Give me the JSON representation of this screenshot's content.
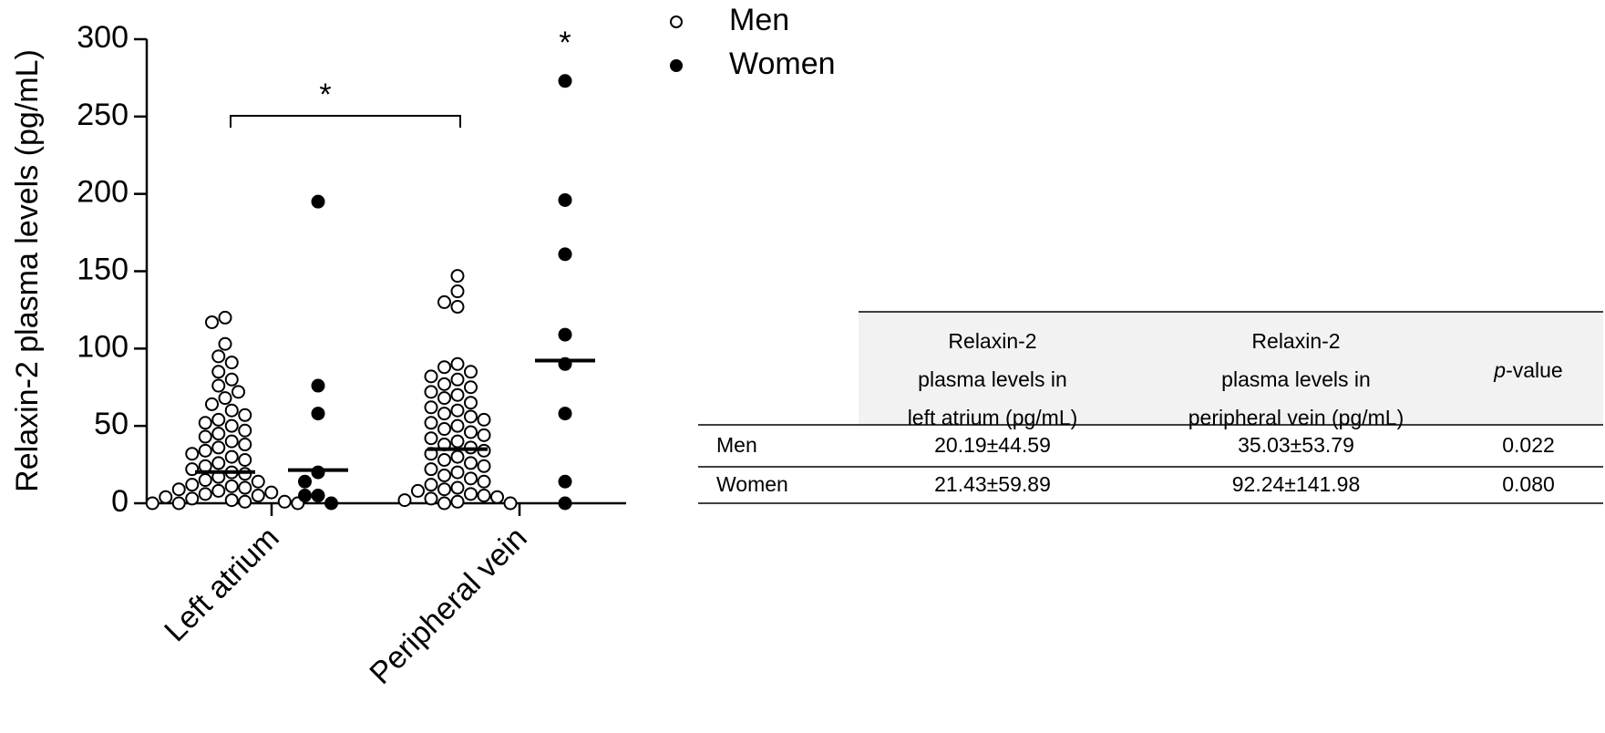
{
  "chart_data": {
    "type": "dot",
    "ylabel": "Relaxin-2 plasma levels (pg/mL)",
    "categories": [
      "Left atrium",
      "Peripheral vein"
    ],
    "ylim": [
      0,
      300
    ],
    "yticks": [
      0,
      50,
      100,
      150,
      200,
      250,
      300
    ],
    "legend": "top-right",
    "series": [
      {
        "name": "Men",
        "color": "#000000",
        "filled": false,
        "means": [
          20.19,
          35.03
        ],
        "values": [
          [
            120,
            117,
            103,
            95,
            91,
            85,
            80,
            76,
            72,
            68,
            64,
            60,
            57,
            54,
            52,
            50,
            47,
            45,
            43,
            40,
            38,
            36,
            34,
            32,
            30,
            28,
            26,
            24,
            22,
            20,
            19,
            17,
            15,
            14,
            12,
            11,
            10,
            9,
            8,
            7,
            6,
            5,
            4,
            3,
            2,
            1,
            1,
            0,
            0,
            0
          ],
          [
            147,
            137,
            130,
            127,
            90,
            88,
            85,
            82,
            80,
            77,
            75,
            72,
            70,
            68,
            65,
            62,
            60,
            58,
            56,
            54,
            52,
            50,
            48,
            46,
            44,
            42,
            40,
            38,
            36,
            34,
            32,
            30,
            28,
            26,
            24,
            22,
            20,
            18,
            16,
            14,
            12,
            10,
            9,
            8,
            6,
            5,
            4,
            3,
            2,
            1,
            0,
            0
          ]
        ]
      },
      {
        "name": "Women",
        "color": "#000000",
        "filled": true,
        "means": [
          21.43,
          92.24
        ],
        "values": [
          [
            195,
            76,
            58,
            20,
            14,
            5,
            5,
            0
          ],
          [
            273,
            196,
            161,
            109,
            90,
            58,
            14,
            0
          ]
        ]
      }
    ],
    "annotations": [
      "*",
      "*"
    ]
  },
  "table": {
    "columns": [
      [
        "Relaxin-2",
        "plasma levels in",
        "left atrium (pg/mL)"
      ],
      [
        "Relaxin-2",
        "plasma levels in",
        "peripheral vein (pg/mL)"
      ]
    ],
    "p_header": {
      "italic": "p",
      "rest": "-value"
    },
    "rows": [
      [
        "Men",
        "20.19±44.59",
        "35.03±53.79",
        "0.022"
      ],
      [
        "Women",
        "21.43±59.89",
        "92.24±141.98",
        "0.080"
      ]
    ]
  }
}
